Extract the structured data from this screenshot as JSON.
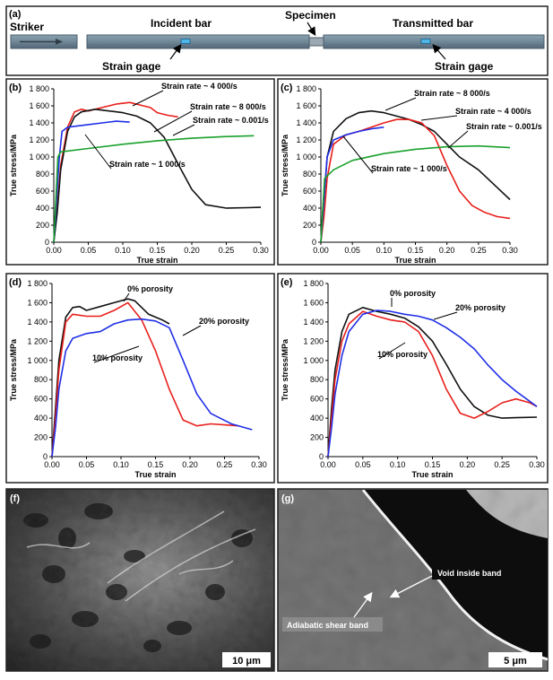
{
  "schematic": {
    "label": "(a)",
    "striker": "Striker",
    "incident": "Incident bar",
    "specimen": "Specimen",
    "transmitted": "Transmitted bar",
    "gage_left": "Strain gage",
    "gage_right": "Strain gage"
  },
  "micrographs": {
    "f": {
      "label": "(f)",
      "scale": "10 μm"
    },
    "g": {
      "label": "(g)",
      "scale": "5 μm",
      "void": "Void inside band",
      "band": "Adiabatic shear band"
    }
  },
  "colors": {
    "red": "#e8201c",
    "black": "#111111",
    "blue": "#1f2fe6",
    "green": "#1aa12c"
  },
  "chart_data": [
    {
      "id": "b",
      "panel_label": "(b)",
      "type": "line",
      "xlabel": "True strain",
      "ylabel": "True stress/MPa",
      "xlim": [
        0,
        0.3
      ],
      "ylim": [
        0,
        1800
      ],
      "xticks": [
        "0.00",
        "0.05",
        "0.10",
        "0.15",
        "0.20",
        "0.25",
        "0.30"
      ],
      "yticks": [
        "0",
        "200",
        "400",
        "600",
        "800",
        "1 000",
        "1 200",
        "1 400",
        "1 600",
        "1 800"
      ],
      "series": [
        {
          "name": "Strain rate ~ 4 000/s",
          "color": "red",
          "x": [
            0,
            0.005,
            0.01,
            0.02,
            0.03,
            0.04,
            0.05,
            0.07,
            0.09,
            0.11,
            0.13,
            0.14,
            0.15,
            0.165,
            0.18
          ],
          "y": [
            0,
            400,
            900,
            1350,
            1530,
            1560,
            1540,
            1580,
            1620,
            1640,
            1600,
            1580,
            1520,
            1490,
            1470
          ]
        },
        {
          "name": "Strain rate ~ 8 000/s",
          "color": "black",
          "x": [
            0,
            0.005,
            0.01,
            0.02,
            0.03,
            0.04,
            0.06,
            0.08,
            0.1,
            0.12,
            0.14,
            0.16,
            0.18,
            0.2,
            0.22,
            0.25,
            0.28,
            0.3
          ],
          "y": [
            0,
            350,
            850,
            1300,
            1470,
            1530,
            1560,
            1540,
            1520,
            1480,
            1400,
            1230,
            920,
            620,
            440,
            400,
            405,
            410
          ]
        },
        {
          "name": "Strain rate ~ 1 000/s",
          "color": "blue",
          "x": [
            0,
            0.004,
            0.008,
            0.012,
            0.02,
            0.03,
            0.05,
            0.07,
            0.09,
            0.11
          ],
          "y": [
            0,
            500,
            1000,
            1300,
            1350,
            1360,
            1380,
            1400,
            1420,
            1410
          ]
        },
        {
          "name": "Strain rate ~ 0.001/s",
          "color": "green",
          "x": [
            0,
            0.003,
            0.006,
            0.01,
            0.05,
            0.1,
            0.15,
            0.2,
            0.25,
            0.29
          ],
          "y": [
            0,
            500,
            1000,
            1060,
            1100,
            1150,
            1190,
            1220,
            1240,
            1250
          ]
        }
      ],
      "annotations": [
        "Strain rate ~ 4 000/s",
        "Strain rate ~ 8 000/s",
        "Strain rate ~ 0.001/s",
        "Strain rate ~ 1 000/s"
      ]
    },
    {
      "id": "c",
      "panel_label": "(c)",
      "type": "line",
      "xlabel": "True strain",
      "ylabel": "True stress/MPa",
      "xlim": [
        0,
        0.3
      ],
      "ylim": [
        0,
        1800
      ],
      "xticks": [
        "0.00",
        "0.05",
        "0.10",
        "0.15",
        "0.20",
        "0.25",
        "0.30"
      ],
      "yticks": [
        "0",
        "200",
        "400",
        "600",
        "800",
        "1 000",
        "1 200",
        "1 400",
        "1 600",
        "1 800"
      ],
      "series": [
        {
          "name": "Strain rate ~ 8 000/s",
          "color": "black",
          "x": [
            0,
            0.005,
            0.01,
            0.02,
            0.04,
            0.06,
            0.08,
            0.1,
            0.12,
            0.14,
            0.16,
            0.18,
            0.2,
            0.22,
            0.25,
            0.28,
            0.3
          ],
          "y": [
            0,
            500,
            1000,
            1300,
            1450,
            1520,
            1540,
            1520,
            1480,
            1440,
            1380,
            1300,
            1150,
            1000,
            850,
            640,
            500
          ]
        },
        {
          "name": "Strain rate ~ 4 000/s",
          "color": "red",
          "x": [
            0,
            0.005,
            0.01,
            0.02,
            0.04,
            0.06,
            0.08,
            0.1,
            0.12,
            0.14,
            0.16,
            0.18,
            0.2,
            0.22,
            0.24,
            0.26,
            0.28,
            0.3
          ],
          "y": [
            0,
            300,
            750,
            1150,
            1260,
            1300,
            1350,
            1400,
            1440,
            1440,
            1400,
            1250,
            900,
            600,
            430,
            350,
            300,
            280
          ]
        },
        {
          "name": "Strain rate ~ 1 000/s",
          "color": "blue",
          "x": [
            0,
            0.005,
            0.01,
            0.02,
            0.04,
            0.06,
            0.08,
            0.1
          ],
          "y": [
            0,
            500,
            1000,
            1200,
            1260,
            1300,
            1330,
            1350
          ]
        },
        {
          "name": "Strain rate ~ 0.001/s",
          "color": "green",
          "x": [
            0,
            0.003,
            0.006,
            0.02,
            0.05,
            0.1,
            0.15,
            0.2,
            0.25,
            0.3
          ],
          "y": [
            0,
            400,
            750,
            850,
            960,
            1040,
            1090,
            1120,
            1130,
            1110
          ]
        }
      ],
      "annotations": [
        "Strain rate ~ 8 000/s",
        "Strain rate ~ 4 000/s",
        "Strain rate ~ 0.001/s",
        "Strain rate ~ 1 000/s"
      ]
    },
    {
      "id": "d",
      "panel_label": "(d)",
      "type": "line",
      "xlabel": "True strain",
      "ylabel": "True stress/MPa",
      "xlim": [
        0,
        0.3
      ],
      "ylim": [
        0,
        1800
      ],
      "xticks": [
        "0.00",
        "0.05",
        "0.10",
        "0.15",
        "0.20",
        "0.25",
        "0.30"
      ],
      "yticks": [
        "0",
        "200",
        "400",
        "600",
        "800",
        "1 000",
        "1 200",
        "1 400",
        "1 600",
        "1 800"
      ],
      "series": [
        {
          "name": "0% porosity",
          "color": "black",
          "x": [
            0,
            0.005,
            0.01,
            0.02,
            0.03,
            0.04,
            0.05,
            0.07,
            0.09,
            0.11,
            0.12,
            0.14,
            0.16,
            0.17
          ],
          "y": [
            0,
            500,
            1000,
            1450,
            1550,
            1560,
            1520,
            1560,
            1600,
            1640,
            1620,
            1480,
            1420,
            1380
          ]
        },
        {
          "name": "10% porosity",
          "color": "red",
          "x": [
            0,
            0.005,
            0.01,
            0.02,
            0.03,
            0.05,
            0.07,
            0.09,
            0.11,
            0.13,
            0.15,
            0.17,
            0.19,
            0.21,
            0.23,
            0.25,
            0.27
          ],
          "y": [
            0,
            400,
            900,
            1400,
            1480,
            1460,
            1460,
            1520,
            1600,
            1420,
            1100,
            700,
            380,
            320,
            340,
            330,
            320
          ]
        },
        {
          "name": "20% porosity",
          "color": "blue",
          "x": [
            0,
            0.005,
            0.01,
            0.02,
            0.03,
            0.05,
            0.07,
            0.09,
            0.11,
            0.13,
            0.15,
            0.17,
            0.19,
            0.21,
            0.23,
            0.26,
            0.29
          ],
          "y": [
            0,
            300,
            700,
            1100,
            1230,
            1280,
            1300,
            1380,
            1420,
            1430,
            1410,
            1340,
            1000,
            650,
            450,
            340,
            280
          ]
        }
      ],
      "annotations": [
        "0% porosity",
        "20% porosity",
        "10% porosity"
      ]
    },
    {
      "id": "e",
      "panel_label": "(e)",
      "type": "line",
      "xlabel": "True strain",
      "ylabel": "True stress/MPa",
      "xlim": [
        0,
        0.3
      ],
      "ylim": [
        0,
        1800
      ],
      "xticks": [
        "0.00",
        "0.05",
        "0.10",
        "0.15",
        "0.20",
        "0.25",
        "0.30"
      ],
      "yticks": [
        "0",
        "200",
        "400",
        "600",
        "800",
        "1 000",
        "1 200",
        "1 400",
        "1 600",
        "1 800"
      ],
      "series": [
        {
          "name": "0% porosity",
          "color": "black",
          "x": [
            0,
            0.005,
            0.01,
            0.02,
            0.03,
            0.05,
            0.07,
            0.09,
            0.11,
            0.13,
            0.15,
            0.17,
            0.19,
            0.21,
            0.23,
            0.25,
            0.27,
            0.3
          ],
          "y": [
            0,
            500,
            900,
            1300,
            1480,
            1550,
            1510,
            1480,
            1440,
            1350,
            1200,
            960,
            700,
            520,
            430,
            400,
            405,
            410
          ]
        },
        {
          "name": "10% porosity",
          "color": "red",
          "x": [
            0,
            0.005,
            0.01,
            0.02,
            0.03,
            0.05,
            0.07,
            0.09,
            0.11,
            0.13,
            0.15,
            0.17,
            0.19,
            0.21,
            0.23,
            0.25,
            0.27,
            0.29,
            0.3
          ],
          "y": [
            0,
            400,
            800,
            1200,
            1380,
            1510,
            1460,
            1420,
            1400,
            1300,
            1050,
            700,
            450,
            400,
            470,
            560,
            600,
            560,
            520
          ]
        },
        {
          "name": "20% porosity",
          "color": "blue",
          "x": [
            0,
            0.005,
            0.01,
            0.02,
            0.03,
            0.05,
            0.07,
            0.09,
            0.11,
            0.13,
            0.15,
            0.17,
            0.19,
            0.21,
            0.23,
            0.25,
            0.27,
            0.3
          ],
          "y": [
            0,
            300,
            650,
            1050,
            1300,
            1480,
            1520,
            1510,
            1480,
            1460,
            1420,
            1340,
            1240,
            1120,
            950,
            800,
            680,
            520
          ]
        }
      ],
      "annotations": [
        "0% porosity",
        "20% porosity",
        "10% porosity"
      ]
    }
  ]
}
